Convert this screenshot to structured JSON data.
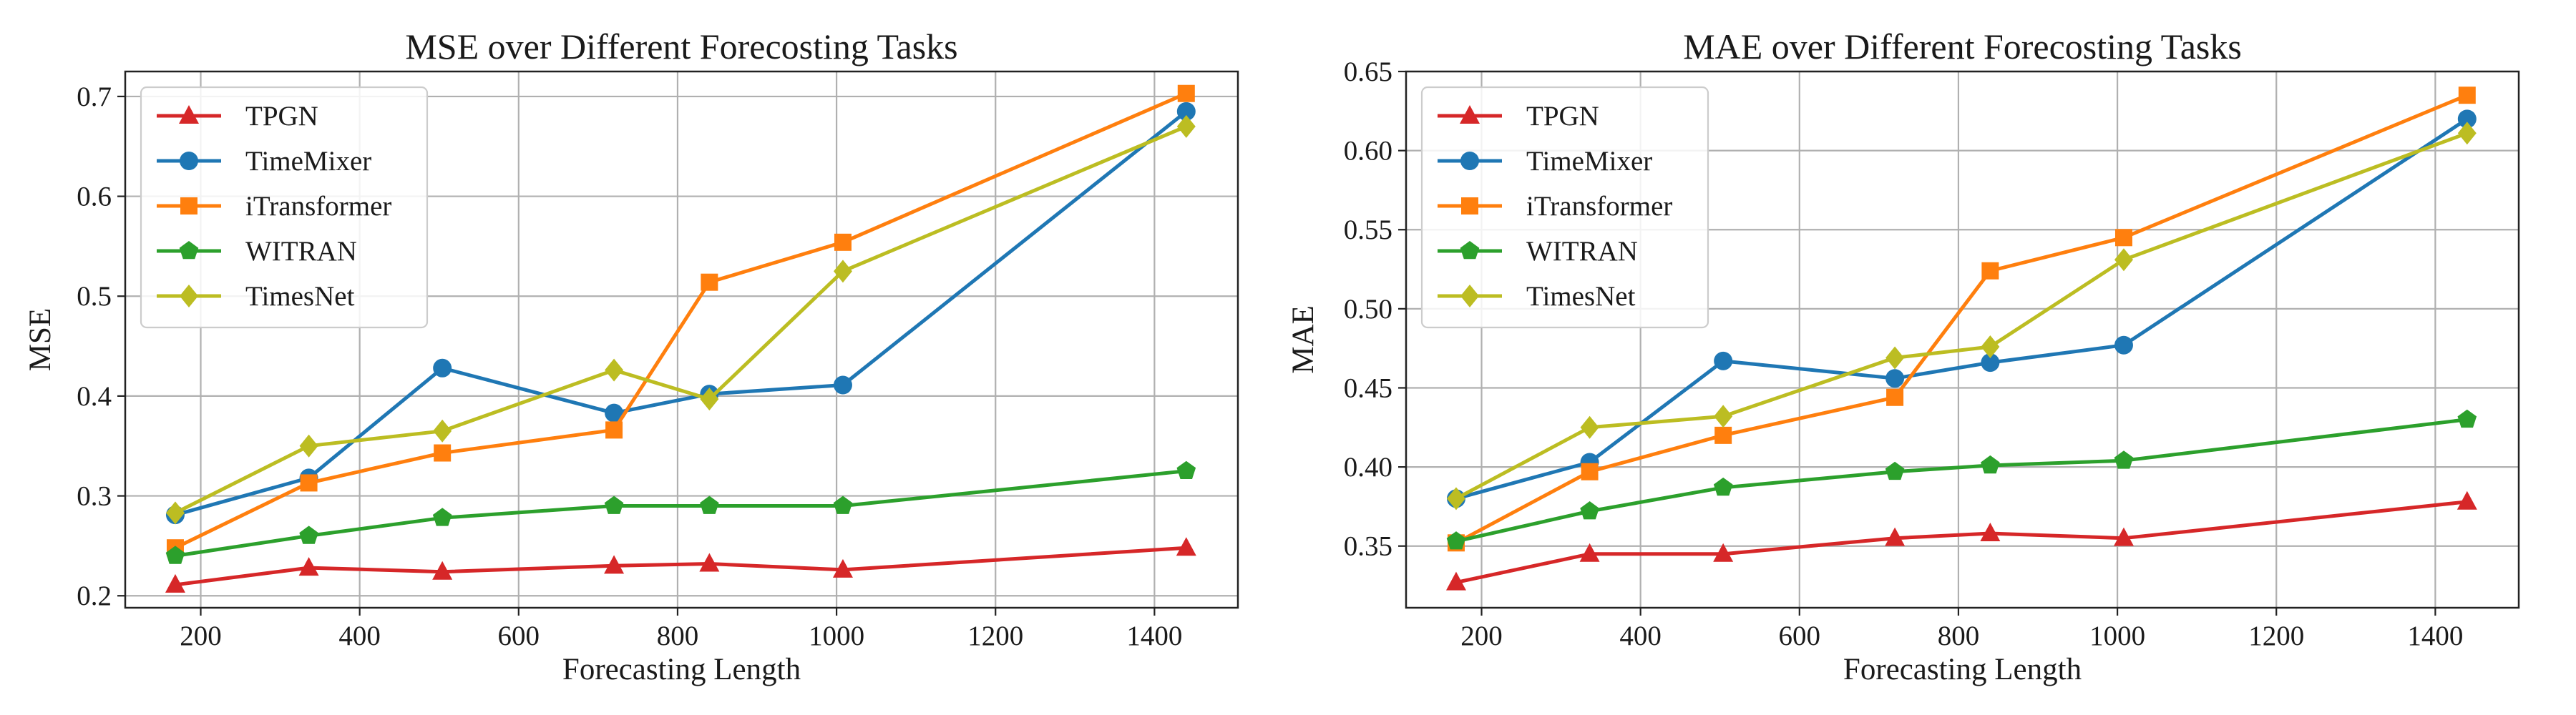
{
  "chart_data": [
    {
      "type": "line",
      "title": "MSE over Different Forecosting Tasks",
      "xlabel": "Forecasting Length",
      "ylabel": "MSE",
      "xlim": [
        105,
        1505
      ],
      "ylim": [
        0.188,
        0.725
      ],
      "xticks": [
        200,
        400,
        600,
        800,
        1000,
        1200,
        1400
      ],
      "xtick_labels": [
        "200",
        "400",
        "600",
        "800",
        "1000",
        "1200",
        "1400"
      ],
      "yticks": [
        0.2,
        0.3,
        0.4,
        0.5,
        0.6,
        0.7
      ],
      "ytick_labels": [
        "0.2",
        "0.3",
        "0.4",
        "0.5",
        "0.6",
        "0.7"
      ],
      "grid": true,
      "legend_position": "top-left",
      "x": [
        168,
        336,
        504,
        720,
        840,
        1008,
        1440
      ],
      "series": [
        {
          "name": "TPGN",
          "color": "#d62728",
          "marker": "triangle",
          "values": [
            0.211,
            0.228,
            0.224,
            0.23,
            0.232,
            0.226,
            0.248
          ]
        },
        {
          "name": "TimeMixer",
          "color": "#1f77b4",
          "marker": "circle",
          "values": [
            0.281,
            0.318,
            0.428,
            0.383,
            0.402,
            0.411,
            0.685
          ]
        },
        {
          "name": "iTransformer",
          "color": "#ff7f0e",
          "marker": "square",
          "values": [
            0.248,
            0.313,
            0.343,
            0.366,
            0.514,
            0.554,
            0.703
          ]
        },
        {
          "name": "WITRAN",
          "color": "#2ca02c",
          "marker": "pentagon",
          "values": [
            0.24,
            0.26,
            0.278,
            0.29,
            0.29,
            0.29,
            0.325
          ]
        },
        {
          "name": "TimesNet",
          "color": "#bcbd22",
          "marker": "diamond",
          "values": [
            0.283,
            0.35,
            0.365,
            0.426,
            0.397,
            0.525,
            0.67
          ]
        }
      ]
    },
    {
      "type": "line",
      "title": "MAE over Different Forecosting Tasks",
      "xlabel": "Forecasting Length",
      "ylabel": "MAE",
      "xlim": [
        105,
        1505
      ],
      "ylim": [
        0.311,
        0.65
      ],
      "xticks": [
        200,
        400,
        600,
        800,
        1000,
        1200,
        1400
      ],
      "xtick_labels": [
        "200",
        "400",
        "600",
        "800",
        "1000",
        "1200",
        "1400"
      ],
      "yticks": [
        0.35,
        0.4,
        0.45,
        0.5,
        0.55,
        0.6,
        0.65
      ],
      "ytick_labels": [
        "0.35",
        "0.40",
        "0.45",
        "0.50",
        "0.55",
        "0.60",
        "0.65"
      ],
      "grid": true,
      "legend_position": "top-left",
      "x": [
        168,
        336,
        504,
        720,
        840,
        1008,
        1440
      ],
      "series": [
        {
          "name": "TPGN",
          "color": "#d62728",
          "marker": "triangle",
          "values": [
            0.327,
            0.345,
            0.345,
            0.355,
            0.358,
            0.355,
            0.378
          ]
        },
        {
          "name": "TimeMixer",
          "color": "#1f77b4",
          "marker": "circle",
          "values": [
            0.38,
            0.403,
            0.467,
            0.456,
            0.466,
            0.477,
            0.62
          ]
        },
        {
          "name": "iTransformer",
          "color": "#ff7f0e",
          "marker": "square",
          "values": [
            0.352,
            0.397,
            0.42,
            0.444,
            0.524,
            0.545,
            0.635
          ]
        },
        {
          "name": "WITRAN",
          "color": "#2ca02c",
          "marker": "pentagon",
          "values": [
            0.353,
            0.372,
            0.387,
            0.397,
            0.401,
            0.404,
            0.43
          ]
        },
        {
          "name": "TimesNet",
          "color": "#bcbd22",
          "marker": "diamond",
          "values": [
            0.38,
            0.425,
            0.432,
            0.469,
            0.476,
            0.531,
            0.611
          ]
        }
      ]
    }
  ]
}
